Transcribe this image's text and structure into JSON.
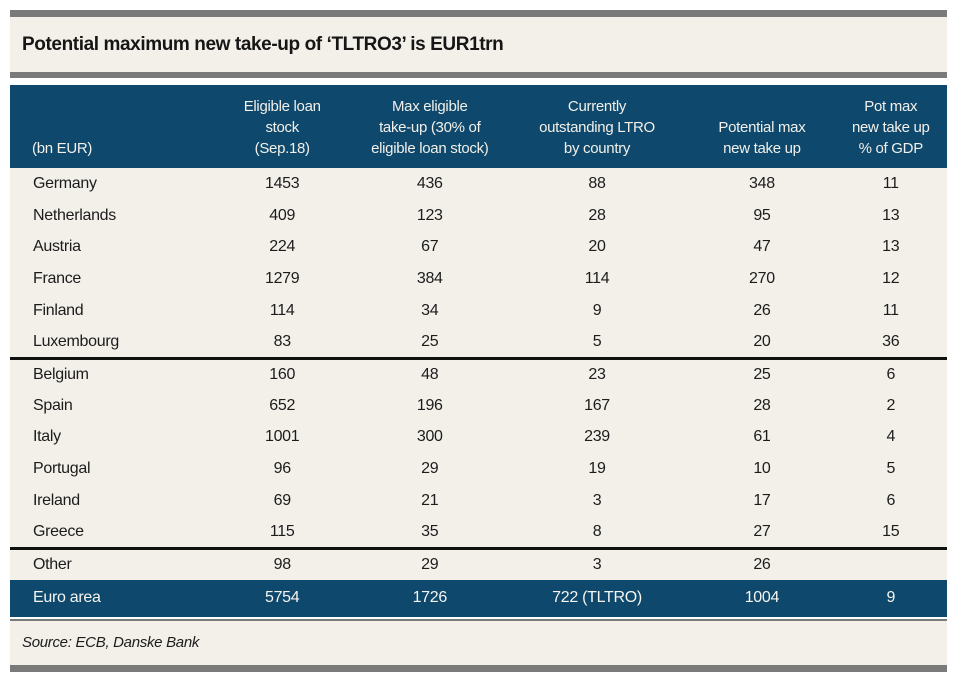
{
  "title": "Potential maximum new take-up of ‘TLTRO3’ is EUR1trn",
  "source": "Source: ECB, Danske Bank",
  "colors": {
    "navy": "#0e486d",
    "cream": "#f2f0e9",
    "gray_bar": "#7a7a7a",
    "separator_black": "#101010",
    "text": "#1c1c1c"
  },
  "table": {
    "unit_label": "(bn EUR)",
    "columns": [
      "Eligible loan\nstock\n(Sep.18)",
      "Max eligible\ntake-up (30% of\neligible loan stock)",
      "Currently\noutstanding LTRO\nby country",
      "Potential max\nnew take up",
      "Pot max\nnew take up\n% of GDP"
    ],
    "groups": [
      {
        "rows": [
          {
            "label": "Germany",
            "values": [
              "1453",
              "436",
              "88",
              "348",
              "11"
            ]
          },
          {
            "label": "Netherlands",
            "values": [
              "409",
              "123",
              "28",
              "95",
              "13"
            ]
          },
          {
            "label": "Austria",
            "values": [
              "224",
              "67",
              "20",
              "47",
              "13"
            ]
          },
          {
            "label": "France",
            "values": [
              "1279",
              "384",
              "114",
              "270",
              "12"
            ]
          },
          {
            "label": "Finland",
            "values": [
              "114",
              "34",
              "9",
              "26",
              "11"
            ]
          },
          {
            "label": "Luxembourg",
            "values": [
              "83",
              "25",
              "5",
              "20",
              "36"
            ]
          }
        ]
      },
      {
        "rows": [
          {
            "label": "Belgium",
            "values": [
              "160",
              "48",
              "23",
              "25",
              "6"
            ]
          },
          {
            "label": "Spain",
            "values": [
              "652",
              "196",
              "167",
              "28",
              "2"
            ]
          },
          {
            "label": "Italy",
            "values": [
              "1001",
              "300",
              "239",
              "61",
              "4"
            ]
          },
          {
            "label": "Portugal",
            "values": [
              "96",
              "29",
              "19",
              "10",
              "5"
            ]
          },
          {
            "label": "Ireland",
            "values": [
              "69",
              "21",
              "3",
              "17",
              "6"
            ]
          },
          {
            "label": "Greece",
            "values": [
              "115",
              "35",
              "8",
              "27",
              "15"
            ]
          }
        ]
      },
      {
        "rows": [
          {
            "label": "Other",
            "values": [
              "98",
              "29",
              "3",
              "26",
              ""
            ]
          }
        ]
      }
    ],
    "total_row": {
      "label": "Euro area",
      "values": [
        "5754",
        "1726",
        "722 (TLTRO)",
        "1004",
        "9"
      ]
    }
  }
}
